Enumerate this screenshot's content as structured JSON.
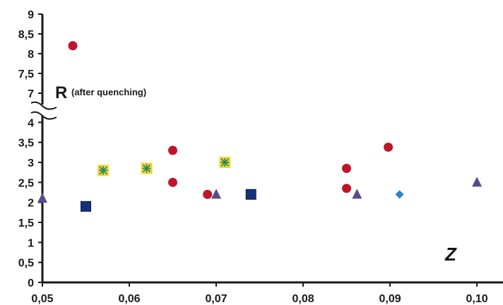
{
  "chart_data": {
    "type": "scatter",
    "xlabel": "Z",
    "ylabel_main": "R",
    "ylabel_sub": "(after quenching)",
    "x_ticks": [
      "0,05",
      "0,06",
      "0,07",
      "0,08",
      "0,09",
      "0,10"
    ],
    "x_tick_values": [
      0.05,
      0.06,
      0.07,
      0.08,
      0.09,
      0.1
    ],
    "xlim": [
      0.05,
      0.103
    ],
    "y_ticks_lower": [
      "0",
      "0,5",
      "1",
      "1,5",
      "2",
      "2,5",
      "3",
      "3,5",
      "4"
    ],
    "y_tick_values_lower": [
      0,
      0.5,
      1,
      1.5,
      2,
      2.5,
      3,
      3.5,
      4
    ],
    "y_ticks_upper": [
      "7",
      "7,5",
      "8",
      "8,5",
      "9"
    ],
    "y_tick_values_upper": [
      7,
      7.5,
      8,
      8.5,
      9
    ],
    "y_axis_break": [
      4,
      7
    ],
    "grid": false,
    "colors": {
      "circle": "#c0142a",
      "triangle": "#5a4a8c",
      "square": "#16307a",
      "diamond": "#2a82c8",
      "star_fill": "#f2d43a",
      "star_line": "#2a8a5a",
      "axis": "#1a1a1a"
    },
    "series": [
      {
        "marker": "circle",
        "points": [
          {
            "x": 0.0535,
            "y": 8.2
          },
          {
            "x": 0.065,
            "y": 3.3
          },
          {
            "x": 0.065,
            "y": 2.5
          },
          {
            "x": 0.069,
            "y": 2.2
          },
          {
            "x": 0.085,
            "y": 2.85
          },
          {
            "x": 0.085,
            "y": 2.35
          },
          {
            "x": 0.0898,
            "y": 3.38
          }
        ]
      },
      {
        "marker": "triangle",
        "points": [
          {
            "x": 0.05,
            "y": 2.1
          },
          {
            "x": 0.07,
            "y": 2.2
          },
          {
            "x": 0.0862,
            "y": 2.2
          },
          {
            "x": 0.1,
            "y": 2.5
          }
        ]
      },
      {
        "marker": "square",
        "points": [
          {
            "x": 0.055,
            "y": 1.9
          },
          {
            "x": 0.074,
            "y": 2.2
          }
        ]
      },
      {
        "marker": "diamond",
        "points": [
          {
            "x": 0.0911,
            "y": 2.2
          }
        ]
      },
      {
        "marker": "star-square",
        "points": [
          {
            "x": 0.057,
            "y": 2.8
          },
          {
            "x": 0.062,
            "y": 2.85
          },
          {
            "x": 0.071,
            "y": 3.0
          }
        ]
      }
    ]
  }
}
